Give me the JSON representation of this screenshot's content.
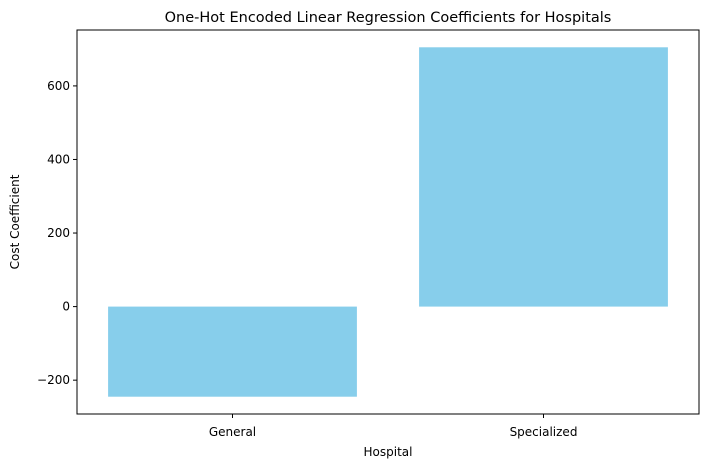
{
  "chart_data": {
    "type": "bar",
    "title": "One-Hot Encoded Linear Regression Coefficients for Hospitals",
    "xlabel": "Hospital",
    "ylabel": "Cost Coefficient",
    "categories": [
      "General",
      "Specialized"
    ],
    "values": [
      -245,
      705
    ],
    "ylim": [
      -292,
      752
    ],
    "yticks": [
      -200,
      0,
      200,
      400,
      600
    ],
    "ytick_labels": [
      "−200",
      "0",
      "200",
      "400",
      "600"
    ],
    "bar_color": "#87CEEB",
    "grid": false,
    "legend": false
  }
}
